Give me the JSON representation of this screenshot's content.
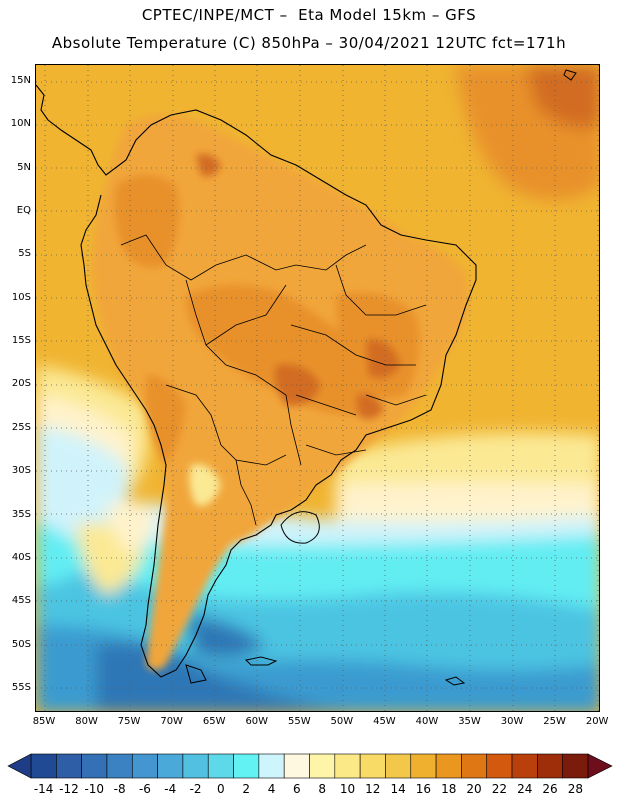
{
  "title": {
    "line1": "CPTEC/INPE/MCT –  Eta Model 15km – GFS",
    "line2": "Absolute Temperature (C) 850hPa – 30/04/2021 12UTC fct=171h"
  },
  "map": {
    "lat_labels": [
      "15N",
      "10N",
      "5N",
      "EQ",
      "5S",
      "10S",
      "15S",
      "20S",
      "25S",
      "30S",
      "35S",
      "40S",
      "45S",
      "50S",
      "55S"
    ],
    "lon_labels": [
      "85W",
      "80W",
      "75W",
      "70W",
      "65W",
      "60W",
      "55W",
      "50W",
      "45W",
      "40W",
      "35W",
      "30W",
      "25W",
      "20W"
    ]
  },
  "colorbar": {
    "labels": [
      "-14",
      "-12",
      "-10",
      "-8",
      "-6",
      "-4",
      "-2",
      "0",
      "2",
      "4",
      "6",
      "8",
      "10",
      "12",
      "14",
      "16",
      "18",
      "20",
      "22",
      "24",
      "26",
      "28"
    ],
    "colors": [
      "#214a94",
      "#2d5ea6",
      "#3470b5",
      "#3b82c3",
      "#4396cf",
      "#4aa9d9",
      "#52c0e0",
      "#5dd9ea",
      "#63f2f4",
      "#cdf5fb",
      "#fff8e1",
      "#fff5a8",
      "#fbe987",
      "#f8db67",
      "#f3c84a",
      "#f0b02f",
      "#ea9720",
      "#e07715",
      "#d2590e",
      "#b9400b",
      "#9e2e0a",
      "#7a1b0c"
    ],
    "under_color": "#1f3c86",
    "over_color": "#6d0e1d"
  },
  "fields": {
    "ocean_warm": "#f0b431",
    "land_warm": "#f1a63a",
    "hot": "#e8912c",
    "very_hot": "#d26c22",
    "cool_yellow": "#fbe994",
    "pale": "#fff3cc",
    "light_cyan": "#d0f3fb",
    "cyan": "#62edf3",
    "mid_blue": "#4cc4e2",
    "blue": "#3a9bd0",
    "deep_blue": "#2d77b6"
  }
}
